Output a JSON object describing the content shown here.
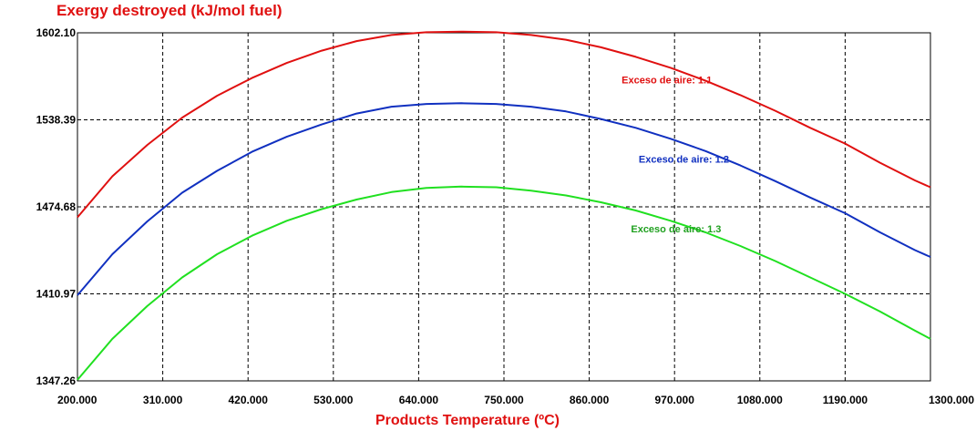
{
  "chart_data": {
    "type": "line",
    "title": "Exergy destroyed (kJ/mol fuel)",
    "xlabel": "Products Temperature (ºC)",
    "ylabel": "",
    "xlim": [
      200,
      1300
    ],
    "ylim": [
      1347.26,
      1602.1
    ],
    "x_ticks": [
      "200.000",
      "310.000",
      "420.000",
      "530.000",
      "640.000",
      "750.000",
      "860.000",
      "970.000",
      "1080.000",
      "1190.000",
      "1300.000"
    ],
    "y_ticks": [
      "1347.26",
      "1410.97",
      "1474.68",
      "1538.39",
      "1602.10"
    ],
    "grid": true,
    "x": [
      200,
      245,
      290,
      335,
      380,
      425,
      470,
      515,
      560,
      605,
      650,
      695,
      740,
      785,
      830,
      875,
      920,
      965,
      1010,
      1055,
      1100,
      1145,
      1190,
      1235,
      1280,
      1300
    ],
    "series": [
      {
        "name": "Exceso de aire: 1.1",
        "color": "#e01010",
        "values": [
          1467.0,
          1497.0,
          1520.0,
          1540.0,
          1556.0,
          1569.0,
          1580.0,
          1589.0,
          1596.0,
          1600.5,
          1602.5,
          1603.0,
          1602.5,
          1600.5,
          1597.0,
          1591.5,
          1584.5,
          1576.5,
          1567.0,
          1556.5,
          1545.0,
          1532.5,
          1521.0,
          1507.0,
          1494.0,
          1489.0
        ]
      },
      {
        "name": "Exceso de aire: 1.2",
        "color": "#1030c0",
        "values": [
          1410.0,
          1440.0,
          1464.0,
          1485.0,
          1501.0,
          1515.0,
          1526.0,
          1535.0,
          1543.0,
          1548.0,
          1550.0,
          1550.5,
          1550.0,
          1548.0,
          1544.5,
          1539.0,
          1532.5,
          1524.5,
          1515.5,
          1505.0,
          1493.5,
          1481.5,
          1470.0,
          1456.0,
          1443.0,
          1438.0
        ]
      },
      {
        "name": "Exceso de aire: 1.3",
        "color": "#20e020",
        "values": [
          1348.0,
          1378.0,
          1402.0,
          1423.0,
          1440.0,
          1453.5,
          1464.5,
          1473.0,
          1480.0,
          1485.5,
          1488.5,
          1489.5,
          1489.0,
          1486.5,
          1483.0,
          1478.0,
          1472.0,
          1464.5,
          1456.0,
          1446.0,
          1435.0,
          1423.0,
          1411.0,
          1398.0,
          1384.0,
          1378.0
        ]
      }
    ],
    "annotations": [
      {
        "text": "Exceso de aire: 1.1",
        "color": "#e01010",
        "x": 960,
        "y": 1565
      },
      {
        "text": "Exceso de aire: 1.2",
        "color": "#1030c0",
        "x": 982,
        "y": 1507
      },
      {
        "text": "Exceso de aire: 1.3",
        "color": "#20a020",
        "x": 972,
        "y": 1456
      }
    ]
  }
}
